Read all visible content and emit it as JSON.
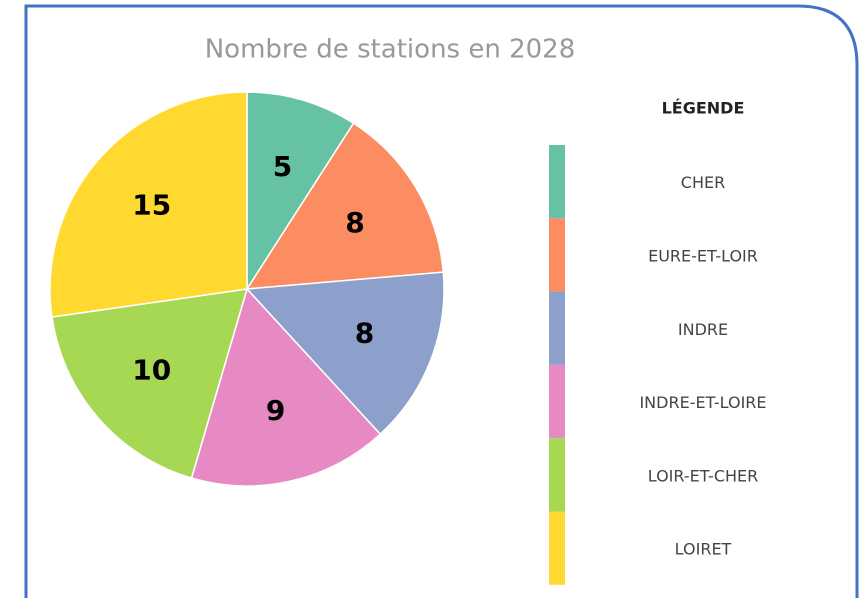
{
  "chart_data": {
    "type": "pie",
    "title": "Nombre de stations en 2028",
    "categories": [
      "CHER",
      "EURE-ET-LOIR",
      "INDRE",
      "INDRE-ET-LOIRE",
      "LOIR-ET-CHER",
      "LOIRET"
    ],
    "values": [
      5,
      8,
      8,
      9,
      10,
      15
    ],
    "colors": [
      "#66c2a5",
      "#fc8d62",
      "#8da0cb",
      "#e78ac3",
      "#a6d854",
      "#ffd92f"
    ],
    "legend_title": "LÉGENDE",
    "legend": "right"
  }
}
